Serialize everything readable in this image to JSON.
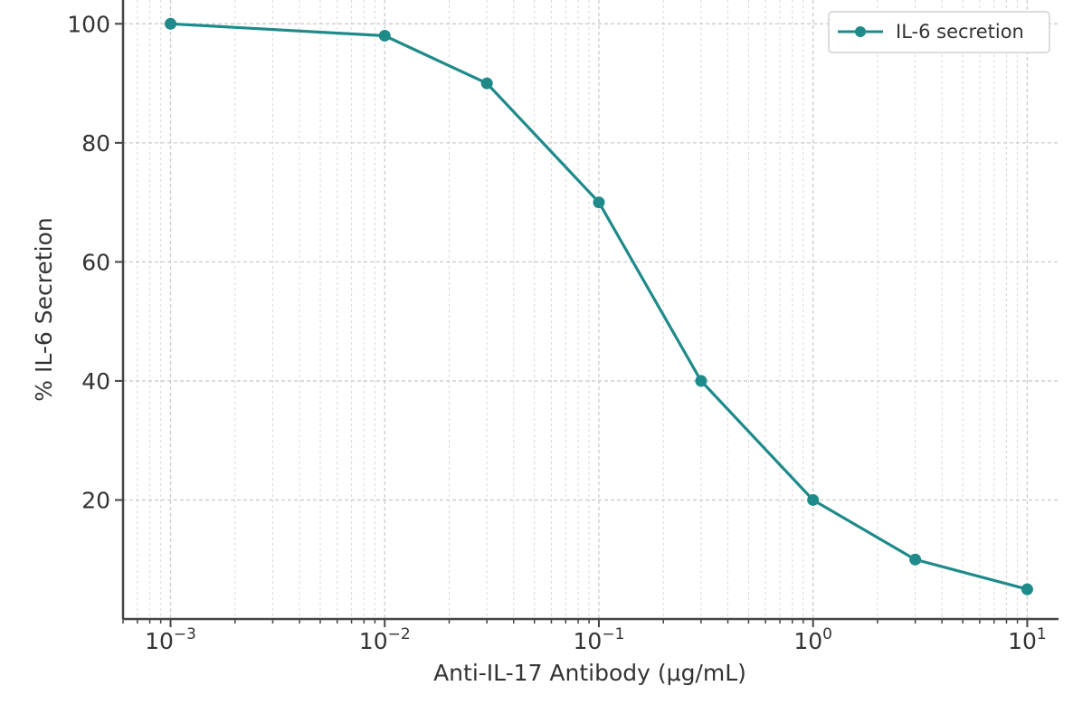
{
  "chart_data": {
    "type": "line",
    "xlabel": "Anti-IL-17 Antibody (μg/mL)",
    "ylabel": "% IL-6 Secretion",
    "x_scale": "log",
    "xlim": [
      0.0006,
      14
    ],
    "ylim": [
      0,
      104
    ],
    "grid": true,
    "legend_position": "top-right",
    "x_ticks": [
      {
        "value": 0.001,
        "base": "10",
        "exp": "−3"
      },
      {
        "value": 0.01,
        "base": "10",
        "exp": "−2"
      },
      {
        "value": 0.1,
        "base": "10",
        "exp": "−1"
      },
      {
        "value": 1,
        "base": "10",
        "exp": "0"
      },
      {
        "value": 10,
        "base": "10",
        "exp": "1"
      }
    ],
    "y_ticks": [
      20,
      40,
      60,
      80,
      100
    ],
    "series": [
      {
        "name": "IL-6 secretion",
        "color": "#1f8a8a",
        "marker": "circle",
        "x": [
          0.001,
          0.01,
          0.03,
          0.1,
          0.3,
          1,
          3,
          10
        ],
        "y": [
          100,
          98,
          90,
          70,
          40,
          20,
          10,
          5
        ]
      }
    ]
  }
}
